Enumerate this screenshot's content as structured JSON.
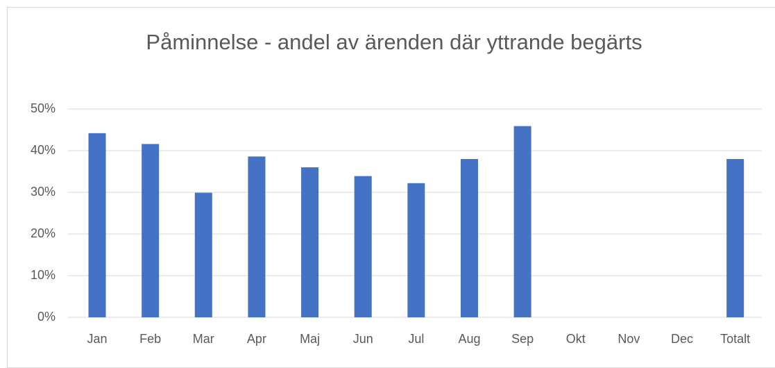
{
  "chart_data": {
    "type": "bar",
    "title": "Påminnelse - andel av ärenden där yttrande begärts",
    "categories": [
      "Jan",
      "Feb",
      "Mar",
      "Apr",
      "Maj",
      "Jun",
      "Jul",
      "Aug",
      "Sep",
      "Okt",
      "Nov",
      "Dec",
      "Totalt"
    ],
    "values": [
      44.2,
      41.6,
      29.9,
      38.6,
      36.0,
      33.9,
      32.2,
      38.0,
      45.9,
      null,
      null,
      null,
      38.0
    ],
    "color": "#4472c4",
    "ylim": [
      0,
      50
    ],
    "yticks": [
      {
        "value": 0,
        "label": "0%"
      },
      {
        "value": 10,
        "label": "10%"
      },
      {
        "value": 20,
        "label": "20%"
      },
      {
        "value": 30,
        "label": "30%"
      },
      {
        "value": 40,
        "label": "40%"
      },
      {
        "value": 50,
        "label": "50%"
      }
    ],
    "grid": true
  }
}
